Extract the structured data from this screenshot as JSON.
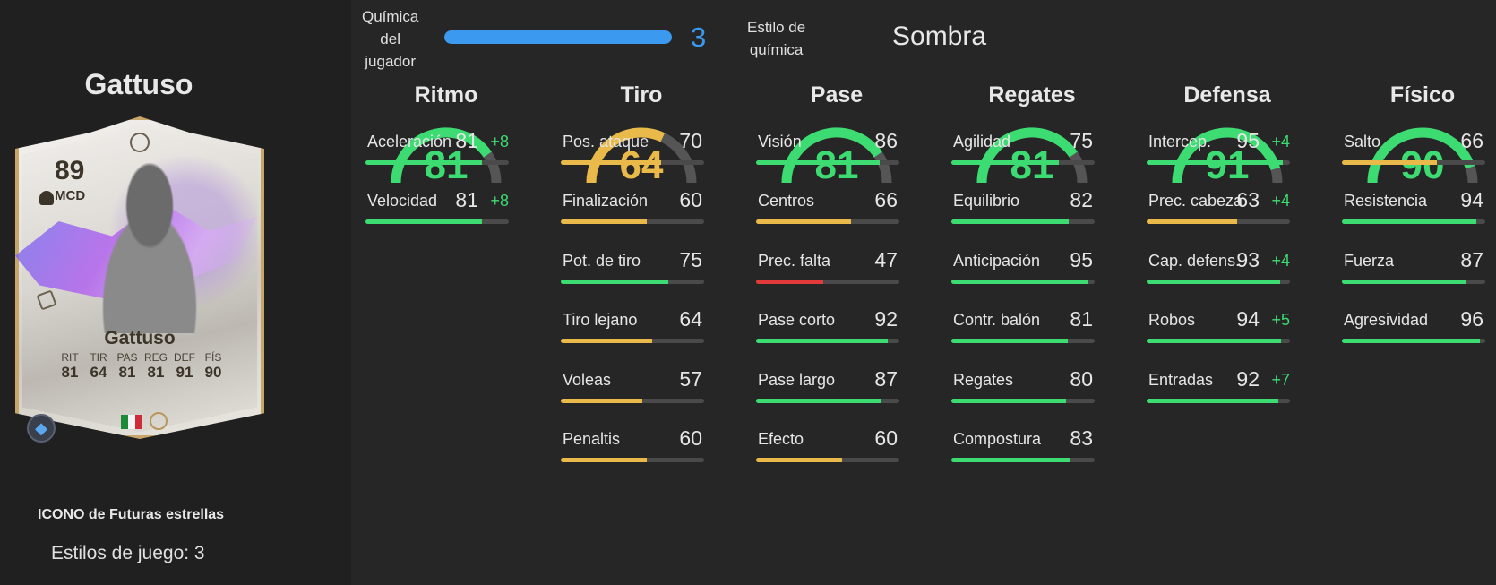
{
  "player": {
    "name": "Gattuso",
    "card_rating": "89",
    "card_position": "MCD",
    "card_name": "Gattuso",
    "card_type": "ICONO de Futuras estrellas",
    "playstyles": "Estilos de juego: 3",
    "card_stats": [
      {
        "label": "RIT",
        "value": "81"
      },
      {
        "label": "TIR",
        "value": "64"
      },
      {
        "label": "PAS",
        "value": "81"
      },
      {
        "label": "REG",
        "value": "81"
      },
      {
        "label": "DEF",
        "value": "91"
      },
      {
        "label": "FÍS",
        "value": "90"
      }
    ],
    "nation_icon": "italy-flag-icon",
    "playstyle_icon": "playstyle-diamond-icon"
  },
  "chemistry": {
    "label": "Química del jugador",
    "value": "3",
    "fill_fraction": 1.0,
    "style_label": "Estilo de química",
    "style_value": "Sombra",
    "accent": "#3b9af0"
  },
  "colors": {
    "green": "#3ddc72",
    "green_dark": "#3fb35c",
    "yellow": "#e9b949",
    "red": "#e23a3a",
    "track": "#4a4a4a"
  },
  "categories": [
    {
      "title": "Ritmo",
      "value": "81",
      "color": "green",
      "stats": [
        {
          "name": "Aceleración",
          "value": "81",
          "bonus": "+8",
          "color": "green"
        },
        {
          "name": "Velocidad",
          "value": "81",
          "bonus": "+8",
          "color": "green"
        }
      ]
    },
    {
      "title": "Tiro",
      "value": "64",
      "color": "yellow",
      "stats": [
        {
          "name": "Pos. ataque",
          "value": "70",
          "bonus": "",
          "color": "yellow"
        },
        {
          "name": "Finalización",
          "value": "60",
          "bonus": "",
          "color": "yellow"
        },
        {
          "name": "Pot. de tiro",
          "value": "75",
          "bonus": "",
          "color": "green"
        },
        {
          "name": "Tiro lejano",
          "value": "64",
          "bonus": "",
          "color": "yellow"
        },
        {
          "name": "Voleas",
          "value": "57",
          "bonus": "",
          "color": "yellow"
        },
        {
          "name": "Penaltis",
          "value": "60",
          "bonus": "",
          "color": "yellow"
        }
      ]
    },
    {
      "title": "Pase",
      "value": "81",
      "color": "green",
      "stats": [
        {
          "name": "Visión",
          "value": "86",
          "bonus": "",
          "color": "green"
        },
        {
          "name": "Centros",
          "value": "66",
          "bonus": "",
          "color": "yellow"
        },
        {
          "name": "Prec. falta",
          "value": "47",
          "bonus": "",
          "color": "red"
        },
        {
          "name": "Pase corto",
          "value": "92",
          "bonus": "",
          "color": "green"
        },
        {
          "name": "Pase largo",
          "value": "87",
          "bonus": "",
          "color": "green"
        },
        {
          "name": "Efecto",
          "value": "60",
          "bonus": "",
          "color": "yellow"
        }
      ]
    },
    {
      "title": "Regates",
      "value": "81",
      "color": "green",
      "stats": [
        {
          "name": "Agilidad",
          "value": "75",
          "bonus": "",
          "color": "green"
        },
        {
          "name": "Equilibrio",
          "value": "82",
          "bonus": "",
          "color": "green"
        },
        {
          "name": "Anticipación",
          "value": "95",
          "bonus": "",
          "color": "green"
        },
        {
          "name": "Contr. balón",
          "value": "81",
          "bonus": "",
          "color": "green"
        },
        {
          "name": "Regates",
          "value": "80",
          "bonus": "",
          "color": "green"
        },
        {
          "name": "Compostura",
          "value": "83",
          "bonus": "",
          "color": "green"
        }
      ]
    },
    {
      "title": "Defensa",
      "value": "91",
      "color": "green",
      "stats": [
        {
          "name": "Intercep.",
          "value": "95",
          "bonus": "+4",
          "color": "green"
        },
        {
          "name": "Prec. cabeza",
          "value": "63",
          "bonus": "+4",
          "color": "yellow"
        },
        {
          "name": "Cap. defens.",
          "value": "93",
          "bonus": "+4",
          "color": "green"
        },
        {
          "name": "Robos",
          "value": "94",
          "bonus": "+5",
          "color": "green"
        },
        {
          "name": "Entradas",
          "value": "92",
          "bonus": "+7",
          "color": "green"
        }
      ]
    },
    {
      "title": "Físico",
      "value": "90",
      "color": "green",
      "stats": [
        {
          "name": "Salto",
          "value": "66",
          "bonus": "",
          "color": "yellow"
        },
        {
          "name": "Resistencia",
          "value": "94",
          "bonus": "",
          "color": "green"
        },
        {
          "name": "Fuerza",
          "value": "87",
          "bonus": "",
          "color": "green"
        },
        {
          "name": "Agresividad",
          "value": "96",
          "bonus": "",
          "color": "green"
        }
      ]
    }
  ]
}
